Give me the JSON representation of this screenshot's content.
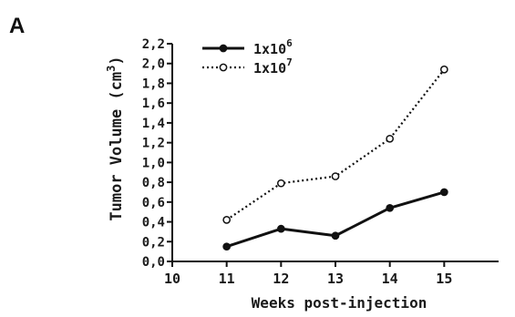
{
  "panel_label": "A",
  "chart_data": {
    "type": "line",
    "xlabel": "Weeks post-injection",
    "ylabel_main": "Tumor Volume (cm",
    "ylabel_sup": "3",
    "ylabel_close": ")",
    "xlim": [
      10,
      16
    ],
    "ylim": [
      0,
      2.2
    ],
    "x_ticks": [
      "10",
      "11",
      "12",
      "13",
      "14",
      "15"
    ],
    "y_ticks": [
      "0,0",
      "0,2",
      "0,4",
      "0,6",
      "0,8",
      "1,0",
      "1,2",
      "1,4",
      "1,6",
      "1,8",
      "2,0",
      "2,2"
    ],
    "x": [
      11,
      12,
      13,
      14,
      15
    ],
    "series": [
      {
        "name": "1x10",
        "name_sup": "6",
        "values": [
          0.15,
          0.33,
          0.26,
          0.54,
          0.7
        ],
        "style": "solid",
        "marker": "filled-circle",
        "color": "#111111"
      },
      {
        "name": "1x10",
        "name_sup": "7",
        "values": [
          0.42,
          0.79,
          0.86,
          1.24,
          1.94
        ],
        "style": "dotted",
        "marker": "open-circle",
        "color": "#111111"
      }
    ],
    "legend_placement": "top-left",
    "grid": false
  }
}
